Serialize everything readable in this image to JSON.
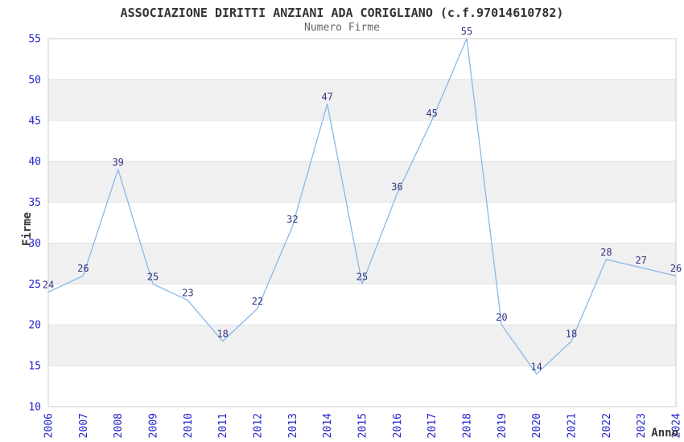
{
  "header": {
    "title": "ASSOCIAZIONE DIRITTI ANZIANI ADA CORIGLIANO (c.f.97014610782)",
    "subtitle": "Numero Firme"
  },
  "chart_data": {
    "type": "line",
    "title": "ASSOCIAZIONE DIRITTI ANZIANI ADA CORIGLIANO (c.f.97014610782)",
    "subtitle": "Numero Firme",
    "xlabel": "Anno",
    "ylabel": "Firme",
    "categories": [
      "2006",
      "2007",
      "2008",
      "2009",
      "2010",
      "2011",
      "2012",
      "2013",
      "2014",
      "2015",
      "2016",
      "2017",
      "2018",
      "2019",
      "2020",
      "2021",
      "2022",
      "2023",
      "2024"
    ],
    "series": [
      {
        "name": "Numero Firme",
        "values": [
          24,
          26,
          39,
          25,
          23,
          18,
          22,
          32,
          47,
          25,
          36,
          45,
          55,
          20,
          14,
          18,
          28,
          27,
          26
        ]
      }
    ],
    "ylim": [
      10,
      55
    ],
    "ytick_step": 5,
    "yticks": [
      10,
      15,
      20,
      25,
      30,
      35,
      40,
      45,
      50,
      55
    ],
    "grid": "alternating-horizontal-bands",
    "legend": "none",
    "point_labels_visible": true,
    "x_tick_rotation_deg": -90,
    "colors": {
      "line": "#87b9ea",
      "tick_label": "#2424cc",
      "data_label": "#333380",
      "band_fill": "#f0f0f0",
      "gridline": "#e2e2e2",
      "plot_border": "#cccccc",
      "title": "#333333",
      "subtitle": "#666666",
      "axis_title": "#333333",
      "background": "#ffffff"
    }
  }
}
